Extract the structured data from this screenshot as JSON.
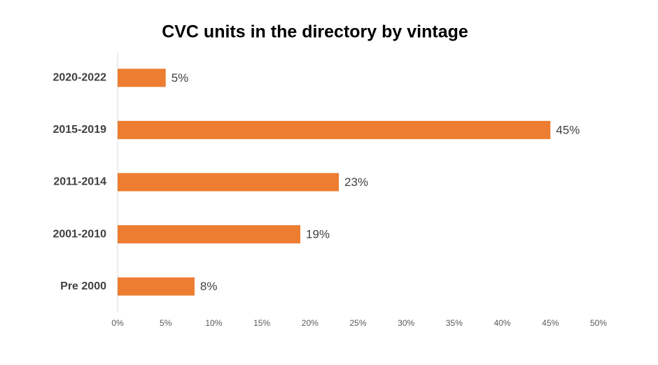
{
  "chart_data": {
    "type": "bar",
    "orientation": "horizontal",
    "title": "CVC units in the directory by vintage",
    "categories": [
      "2020-2022",
      "2015-2019",
      "2011-2014",
      "2001-2010",
      "Pre 2000"
    ],
    "values": [
      5,
      45,
      23,
      19,
      8
    ],
    "value_labels": [
      "5%",
      "45%",
      "23%",
      "19%",
      "8%"
    ],
    "color": "#ed7d31",
    "xlim": [
      0,
      50
    ],
    "xticks": [
      {
        "value": 0,
        "label": "0%"
      },
      {
        "value": 5,
        "label": "5%"
      },
      {
        "value": 10,
        "label": "10%"
      },
      {
        "value": 15,
        "label": "15%"
      },
      {
        "value": 20,
        "label": "20%"
      },
      {
        "value": 25,
        "label": "25%"
      },
      {
        "value": 30,
        "label": "30%"
      },
      {
        "value": 35,
        "label": "35%"
      },
      {
        "value": 40,
        "label": "40%"
      },
      {
        "value": 45,
        "label": "45%"
      },
      {
        "value": 50,
        "label": "50%"
      }
    ],
    "grid": false
  }
}
